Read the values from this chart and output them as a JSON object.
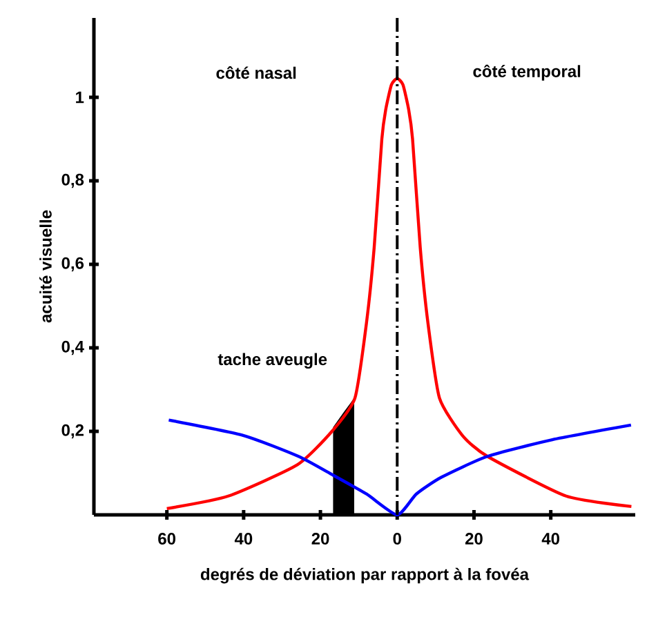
{
  "chart_data": {
    "type": "line",
    "xlabel": "degrés de déviation par rapport à la fovéa",
    "ylabel": "acuité visuelle",
    "xlim": [
      -79,
      62
    ],
    "ylim": [
      0,
      1.19
    ],
    "xticks": [
      {
        "value": -60,
        "label": "60"
      },
      {
        "value": -40,
        "label": "40"
      },
      {
        "value": -20,
        "label": "20"
      },
      0,
      20,
      40
    ],
    "yticks": [
      {
        "value": 0.2,
        "label": "0,2"
      },
      {
        "value": 0.4,
        "label": "0,4"
      },
      {
        "value": 0.6,
        "label": "0,6"
      },
      {
        "value": 0.8,
        "label": "0,8"
      },
      {
        "value": 1,
        "label": "1"
      }
    ],
    "marker": "none",
    "series": [
      {
        "type": "area",
        "color": "#000000",
        "x": [
          -16.7,
          -14,
          -11.2
        ],
        "values": [
          0.21,
          0.245,
          0.28
        ]
      },
      {
        "color": "#ff0000",
        "x": [
          -60,
          -44,
          -26,
          -17,
          -11,
          -8,
          -6,
          -4,
          -3,
          -1.5,
          0,
          1.5,
          3,
          4,
          6,
          8,
          11,
          17,
          23.5,
          44,
          61
        ],
        "values": [
          0.015,
          0.045,
          0.12,
          0.2,
          0.28,
          0.46,
          0.64,
          0.9,
          0.97,
          1.03,
          1.045,
          1.03,
          0.97,
          0.9,
          0.64,
          0.46,
          0.28,
          0.19,
          0.14,
          0.045,
          0.02
        ]
      },
      {
        "color": "#0000ff",
        "x": [
          -59.5,
          -40,
          -25.7,
          -16.7,
          -8,
          0,
          5,
          11.5,
          23.5,
          40.4,
          60.9
        ],
        "values": [
          0.227,
          0.19,
          0.14,
          0.095,
          0.05,
          0,
          0.05,
          0.09,
          0.14,
          0.18,
          0.215
        ]
      }
    ],
    "ref_lines": [
      {
        "axis": "x",
        "value": 0,
        "color": "#000000",
        "line_style": "dashdot"
      }
    ],
    "annotations": [
      "côté nasal",
      "côté temporal",
      "tache aveugle"
    ]
  }
}
